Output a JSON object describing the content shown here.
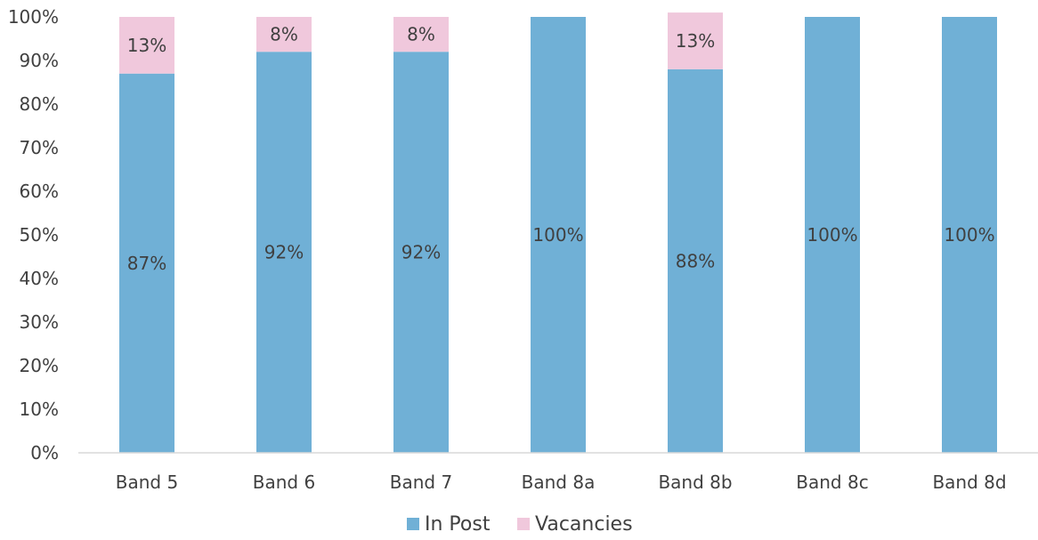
{
  "chart_data": {
    "type": "bar",
    "stacked": true,
    "percent_stacked": true,
    "categories": [
      "Band 5",
      "Band 6",
      "Band 7",
      "Band 8a",
      "Band 8b",
      "Band 8c",
      "Band 8d"
    ],
    "series": [
      {
        "name": "In Post",
        "color": "#70b0d6",
        "values": [
          87,
          92,
          92,
          100,
          88,
          100,
          100
        ],
        "labels": [
          "87%",
          "92%",
          "92%",
          "100%",
          "88%",
          "100%",
          "100%"
        ]
      },
      {
        "name": "Vacancies",
        "color": "#f0c8dc",
        "values": [
          13,
          8,
          8,
          0,
          13,
          0,
          0
        ],
        "labels": [
          "13%",
          "8%",
          "8%",
          "",
          "13%",
          "",
          ""
        ]
      }
    ],
    "ylim": [
      0,
      100
    ],
    "yticks": [
      "0%",
      "10%",
      "20%",
      "30%",
      "40%",
      "50%",
      "60%",
      "70%",
      "80%",
      "90%",
      "100%"
    ],
    "grid": false,
    "legend_position": "bottom"
  }
}
